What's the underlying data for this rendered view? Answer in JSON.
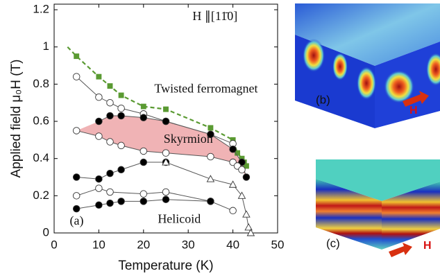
{
  "chart_data": {
    "type": "line",
    "x_label": "Temperature (K)",
    "y_label": "Applied field μ₀H (T)",
    "xlim": [
      0,
      50
    ],
    "xticks": [
      0,
      10,
      20,
      30,
      40,
      50
    ],
    "ylim": [
      0,
      1.23
    ],
    "yticks": [
      0,
      0.2,
      0.4,
      0.6,
      0.8,
      1,
      1.2
    ],
    "series": [
      {
        "x": [
          3,
          5,
          10,
          12.5,
          15,
          20,
          25,
          35,
          40,
          41,
          42,
          42.5,
          43
        ],
        "values": [
          1.0,
          0.95,
          0.84,
          0.79,
          0.74,
          0.68,
          0.665,
          0.565,
          0.5,
          0.43,
          0.4,
          0.38,
          0.36
        ],
        "color": "#5a9a32",
        "marker": "square",
        "marker_fill": "#5a9a32",
        "line_style": "dashed",
        "markers_from": 1
      },
      {
        "x": [
          5,
          10,
          12.5,
          15,
          20,
          25,
          35,
          40
        ],
        "values": [
          0.84,
          0.73,
          0.7,
          0.67,
          0.64,
          0.6,
          0.53,
          0.48
        ],
        "color": "#555",
        "marker": "circle",
        "marker_fill": "#fff",
        "line_style": "solid",
        "markers_from": 0
      },
      {
        "x": [
          10,
          12.5,
          15,
          20,
          25,
          35,
          40,
          42,
          43
        ],
        "values": [
          0.6,
          0.63,
          0.63,
          0.62,
          0.6,
          0.53,
          0.45,
          0.38,
          0.3
        ],
        "color": "#555",
        "marker": "circle",
        "marker_fill": "#000",
        "line_style": "solid",
        "markers_from": 0
      },
      {
        "x": [
          5,
          10,
          12.5,
          15,
          20,
          25,
          35,
          40,
          41,
          42
        ],
        "values": [
          0.55,
          0.52,
          0.49,
          0.47,
          0.44,
          0.43,
          0.41,
          0.38,
          0.36,
          0.34
        ],
        "color": "#555",
        "marker": "circle",
        "marker_fill": "#fff",
        "line_style": "solid",
        "markers_from": 0
      },
      {
        "x": [
          5,
          10,
          12.5,
          15,
          20,
          25
        ],
        "values": [
          0.3,
          0.29,
          0.32,
          0.34,
          0.38,
          0.38
        ],
        "color": "#555",
        "marker": "circle",
        "marker_fill": "#000",
        "line_style": "solid",
        "markers_from": 0
      },
      {
        "x": [
          25,
          35,
          40,
          42,
          43,
          43.5,
          44
        ],
        "values": [
          0.38,
          0.29,
          0.26,
          0.2,
          0.1,
          0.03,
          0.0
        ],
        "color": "#555",
        "marker": "triangle",
        "marker_fill": "#fff",
        "line_style": "solid",
        "markers_from": 0
      },
      {
        "x": [
          5,
          10,
          12.5,
          20,
          25,
          35,
          40
        ],
        "values": [
          0.2,
          0.24,
          0.22,
          0.21,
          0.22,
          0.17,
          0.12
        ],
        "color": "#555",
        "marker": "circle",
        "marker_fill": "#fff",
        "line_style": "solid",
        "markers_from": 0
      },
      {
        "x": [
          5,
          10,
          12.5,
          15,
          20,
          25,
          35
        ],
        "values": [
          0.13,
          0.15,
          0.16,
          0.17,
          0.17,
          0.18,
          0.17
        ],
        "color": "#555",
        "marker": "circle",
        "marker_fill": "#000",
        "line_style": "solid",
        "markers_from": 0
      }
    ],
    "fill_between": [
      2,
      3
    ],
    "fill_color": "#f0b3b5",
    "annotations": [
      {
        "text": "H ∥[11̄0]",
        "x": 36,
        "y": 1.16
      },
      {
        "text": "Twisted ferromagnet",
        "x": 34,
        "y": 0.77
      },
      {
        "text": "Skyrmion",
        "x": 30,
        "y": 0.5
      },
      {
        "text": "Helicoid",
        "x": 28,
        "y": 0.07
      },
      {
        "text": "(a)",
        "x": 3.5,
        "y": 0.06
      }
    ]
  },
  "panels": [
    {
      "label": "(b)",
      "field": "H"
    },
    {
      "label": "(c)",
      "field": "H"
    }
  ]
}
